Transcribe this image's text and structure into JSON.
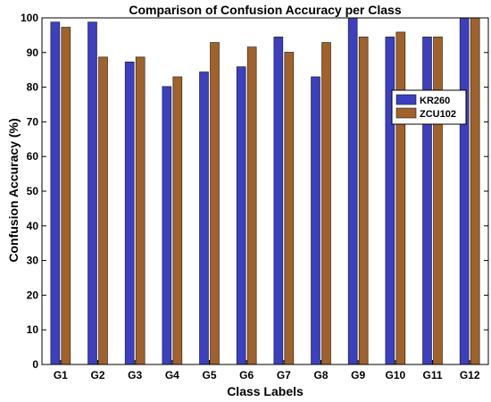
{
  "chart_data": {
    "type": "bar",
    "title": "Comparison of Confusion Accuracy per Class",
    "xlabel": "Class Labels",
    "ylabel": "Confusion Accuracy (%)",
    "ylim": [
      0,
      100
    ],
    "yticks": [
      0,
      10,
      20,
      30,
      40,
      50,
      60,
      70,
      80,
      90,
      100
    ],
    "grid": false,
    "legend_position": "right",
    "categories": [
      "G1",
      "G2",
      "G3",
      "G4",
      "G5",
      "G6",
      "G7",
      "G8",
      "G9",
      "G10",
      "G11",
      "G12"
    ],
    "series": [
      {
        "name": "KR260",
        "color": "#3b3fc0",
        "values": [
          98.8,
          98.8,
          87.3,
          80.2,
          84.4,
          85.9,
          94.5,
          83.0,
          100,
          94.5,
          94.5,
          100
        ]
      },
      {
        "name": "ZCU102",
        "color": "#a0622a",
        "values": [
          97.3,
          88.7,
          88.7,
          83.0,
          92.9,
          91.6,
          90.1,
          92.9,
          94.5,
          95.9,
          94.5,
          100
        ]
      }
    ]
  }
}
